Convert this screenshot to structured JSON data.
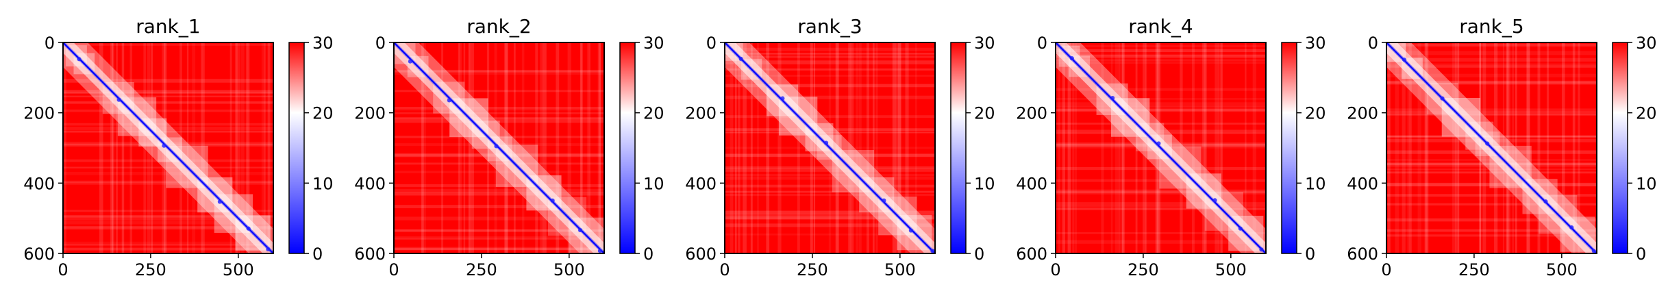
{
  "chart_data": [
    {
      "type": "heatmap",
      "title": "rank_1",
      "xticks": [
        "0",
        "250",
        "500"
      ],
      "yticks": [
        "0",
        "200",
        "400",
        "600"
      ],
      "colorbar_ticks": [
        "0",
        "10",
        "20",
        "30"
      ],
      "colorbar_range": [
        0,
        30
      ],
      "colormap": "bwr",
      "xlim": [
        0,
        600
      ],
      "ylim": [
        600,
        0
      ]
    },
    {
      "type": "heatmap",
      "title": "rank_2",
      "xticks": [
        "0",
        "250",
        "500"
      ],
      "yticks": [
        "0",
        "200",
        "400",
        "600"
      ],
      "colorbar_ticks": [
        "0",
        "10",
        "20",
        "30"
      ],
      "colorbar_range": [
        0,
        30
      ],
      "colormap": "bwr",
      "xlim": [
        0,
        600
      ],
      "ylim": [
        600,
        0
      ]
    },
    {
      "type": "heatmap",
      "title": "rank_3",
      "xticks": [
        "0",
        "250",
        "500"
      ],
      "yticks": [
        "0",
        "200",
        "400",
        "600"
      ],
      "colorbar_ticks": [
        "0",
        "10",
        "20",
        "30"
      ],
      "colorbar_range": [
        0,
        30
      ],
      "colormap": "bwr",
      "xlim": [
        0,
        600
      ],
      "ylim": [
        600,
        0
      ]
    },
    {
      "type": "heatmap",
      "title": "rank_4",
      "xticks": [
        "0",
        "250",
        "500"
      ],
      "yticks": [
        "0",
        "200",
        "400",
        "600"
      ],
      "colorbar_ticks": [
        "0",
        "10",
        "20",
        "30"
      ],
      "colorbar_range": [
        0,
        30
      ],
      "colormap": "bwr",
      "xlim": [
        0,
        600
      ],
      "ylim": [
        600,
        0
      ]
    },
    {
      "type": "heatmap",
      "title": "rank_5",
      "xticks": [
        "0",
        "250",
        "500"
      ],
      "yticks": [
        "0",
        "200",
        "400",
        "600"
      ],
      "colorbar_ticks": [
        "0",
        "10",
        "20",
        "30"
      ],
      "colorbar_range": [
        0,
        30
      ],
      "colormap": "bwr",
      "xlim": [
        0,
        600
      ],
      "ylim": [
        600,
        0
      ]
    }
  ],
  "colors": {
    "high": "#ff0000",
    "mid": "#ffffff",
    "low": "#0000ff"
  }
}
